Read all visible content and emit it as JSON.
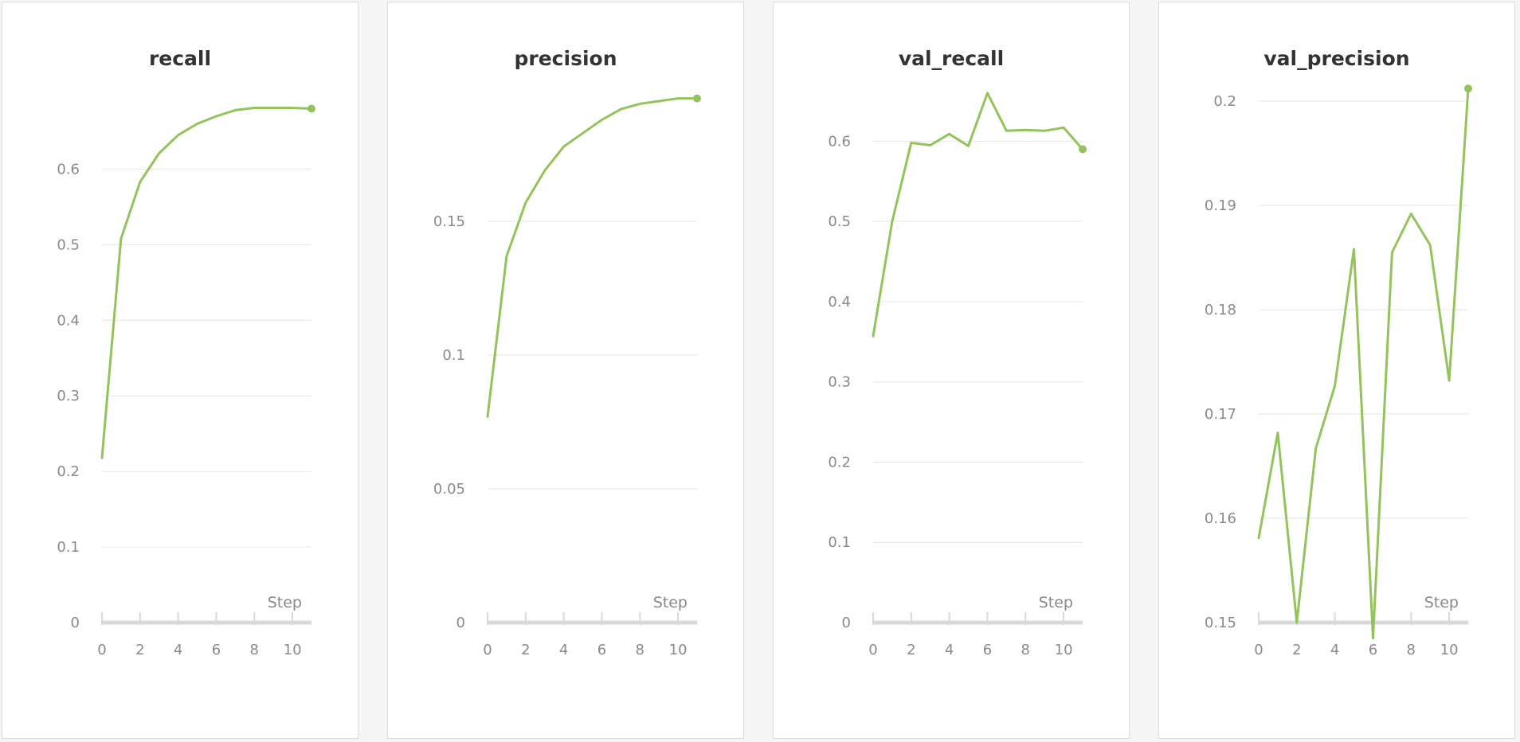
{
  "colors": {
    "line": "#94c35b",
    "grid": "#e6e6e6",
    "axis": "#d9d9d9",
    "text": "#8a8a8a",
    "title": "#333333"
  },
  "chart_data": [
    {
      "type": "line",
      "title": "recall",
      "xlabel": "Step",
      "ylabel": "",
      "xlim": [
        0,
        11
      ],
      "ylim": [
        0,
        0.69
      ],
      "xticks": [
        0,
        2,
        4,
        6,
        8,
        10
      ],
      "yticks": [
        0,
        0.1,
        0.2,
        0.3,
        0.4,
        0.5,
        0.6
      ],
      "ytick_labels": [
        "0",
        "0.1",
        "0.2",
        "0.3",
        "0.4",
        "0.5",
        "0.6"
      ],
      "series": [
        {
          "x": [
            0,
            1,
            2,
            3,
            4,
            5,
            6,
            7,
            8,
            9,
            10,
            11
          ],
          "y": [
            0.218,
            0.508,
            0.583,
            0.621,
            0.645,
            0.66,
            0.67,
            0.678,
            0.681,
            0.681,
            0.681,
            0.68
          ]
        }
      ]
    },
    {
      "type": "line",
      "title": "precision",
      "xlabel": "Step",
      "ylabel": "",
      "xlim": [
        0,
        11
      ],
      "ylim": [
        0,
        0.195
      ],
      "xticks": [
        0,
        2,
        4,
        6,
        8,
        10
      ],
      "yticks": [
        0,
        0.05,
        0.1,
        0.15
      ],
      "ytick_labels": [
        "0",
        "0.05",
        "0.1",
        "0.15"
      ],
      "series": [
        {
          "x": [
            0,
            1,
            2,
            3,
            4,
            5,
            6,
            7,
            8,
            9,
            10,
            11
          ],
          "y": [
            0.077,
            0.137,
            0.157,
            0.169,
            0.178,
            0.183,
            0.188,
            0.192,
            0.194,
            0.195,
            0.196,
            0.196
          ]
        }
      ]
    },
    {
      "type": "line",
      "title": "val_recall",
      "xlabel": "Step",
      "ylabel": "",
      "xlim": [
        0,
        11
      ],
      "ylim": [
        0,
        0.65
      ],
      "xticks": [
        0,
        2,
        4,
        6,
        8,
        10
      ],
      "yticks": [
        0,
        0.1,
        0.2,
        0.3,
        0.4,
        0.5,
        0.6
      ],
      "ytick_labels": [
        "0",
        "0.1",
        "0.2",
        "0.3",
        "0.4",
        "0.5",
        "0.6"
      ],
      "series": [
        {
          "x": [
            0,
            1,
            2,
            3,
            4,
            5,
            6,
            7,
            8,
            9,
            10,
            11
          ],
          "y": [
            0.357,
            0.5,
            0.598,
            0.595,
            0.609,
            0.594,
            0.66,
            0.613,
            0.614,
            0.613,
            0.617,
            0.59
          ]
        }
      ]
    },
    {
      "type": "line",
      "title": "val_precision",
      "xlabel": "Step",
      "ylabel": "",
      "xlim": [
        0,
        11
      ],
      "ylim": [
        0.15,
        0.2
      ],
      "xticks": [
        0,
        2,
        4,
        6,
        8,
        10
      ],
      "yticks": [
        0.15,
        0.16,
        0.17,
        0.18,
        0.19,
        0.2
      ],
      "ytick_labels": [
        "0.15",
        "0.16",
        "0.17",
        "0.18",
        "0.19",
        "0.2"
      ],
      "series": [
        {
          "x": [
            0,
            1,
            2,
            3,
            4,
            5,
            6,
            7,
            8,
            9,
            10,
            11
          ],
          "y": [
            0.1581,
            0.1682,
            0.15,
            0.1667,
            0.1727,
            0.1858,
            0.1485,
            0.1855,
            0.1892,
            0.1862,
            0.1732,
            0.2012
          ]
        }
      ]
    }
  ]
}
